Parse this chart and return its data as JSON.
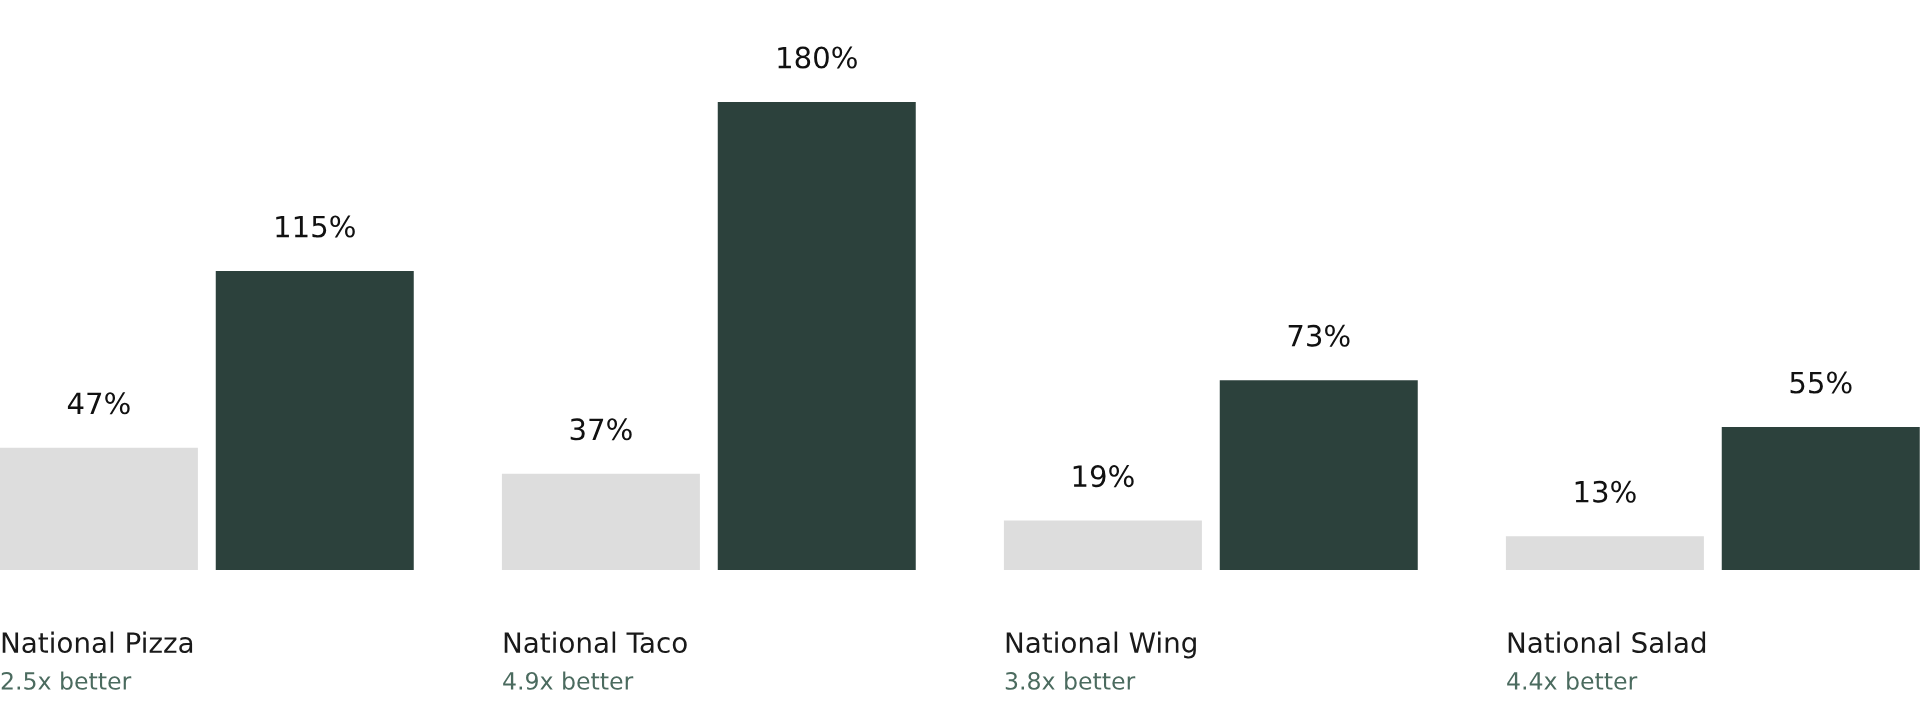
{
  "chart_data": {
    "type": "bar",
    "categories": [
      "National Pizza",
      "National Taco",
      "National Wing",
      "National Salad"
    ],
    "series": [
      {
        "color": "#dddddd",
        "values": [
          47,
          37,
          19,
          13
        ],
        "value_labels": [
          "47%",
          "37%",
          "19%",
          "13%"
        ]
      },
      {
        "color": "#2c413c",
        "values": [
          115,
          180,
          73,
          55
        ],
        "value_labels": [
          "115%",
          "180%",
          "73%",
          "55%"
        ]
      }
    ],
    "annotations": [
      "2.5x better",
      "4.9x better",
      "3.8x better",
      "4.4x better"
    ]
  }
}
